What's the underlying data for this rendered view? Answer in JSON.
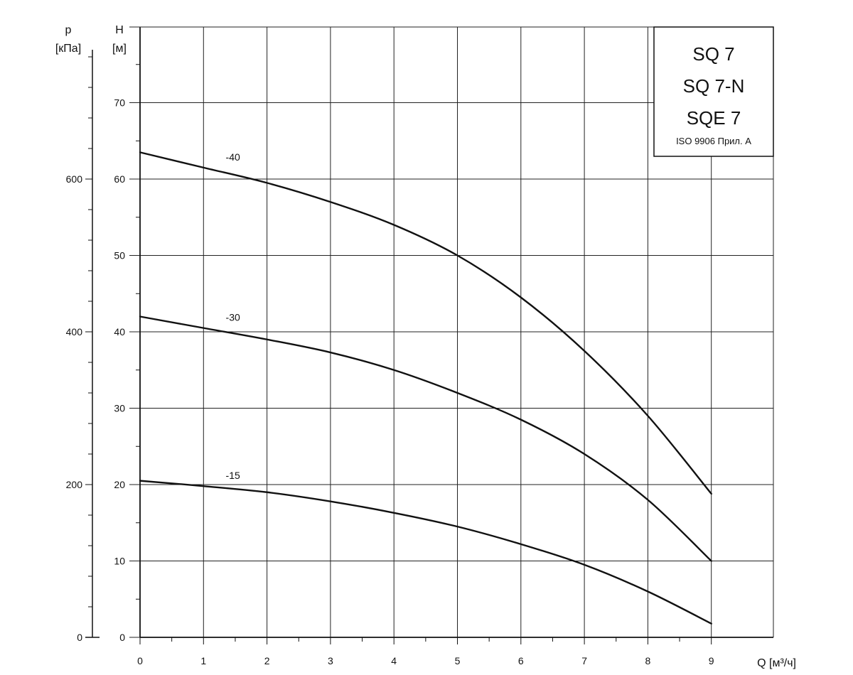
{
  "chart_data": {
    "type": "line",
    "title_lines": [
      "SQ 7",
      "SQ 7-N",
      "SQE 7"
    ],
    "subtitle": "ISO 9906 Прил. A",
    "xlabel": "Q [м³/ч]",
    "ylabel_head_symbol": "H",
    "ylabel_head_unit": "[м]",
    "ylabel_pressure_symbol": "p",
    "ylabel_pressure_unit": "[кПа]",
    "xlim": [
      0,
      9
    ],
    "ylim": [
      0,
      80
    ],
    "pressure_lim": [
      0,
      800
    ],
    "x_ticks": [
      0,
      1,
      2,
      3,
      4,
      5,
      6,
      7,
      8,
      9
    ],
    "y_ticks": [
      0,
      10,
      20,
      30,
      40,
      50,
      60,
      70
    ],
    "pressure_ticks": [
      0,
      200,
      400,
      600
    ],
    "grid": true,
    "series": [
      {
        "name": "-40",
        "x": [
          0,
          1,
          2,
          3,
          4,
          5,
          6,
          7,
          8,
          9
        ],
        "y": [
          63.5,
          61.5,
          59.5,
          57.0,
          54.0,
          50.0,
          44.5,
          37.5,
          29.0,
          18.8
        ]
      },
      {
        "name": "-30",
        "x": [
          0,
          1,
          2,
          3,
          4,
          5,
          6,
          7,
          8,
          9
        ],
        "y": [
          42.0,
          40.5,
          39.0,
          37.3,
          35.0,
          32.0,
          28.5,
          24.0,
          18.0,
          10.0
        ]
      },
      {
        "name": "-15",
        "x": [
          0,
          1,
          2,
          3,
          4,
          5,
          6,
          7,
          8,
          9
        ],
        "y": [
          20.5,
          19.8,
          19.0,
          17.8,
          16.3,
          14.5,
          12.2,
          9.5,
          6.0,
          1.8
        ]
      }
    ]
  }
}
